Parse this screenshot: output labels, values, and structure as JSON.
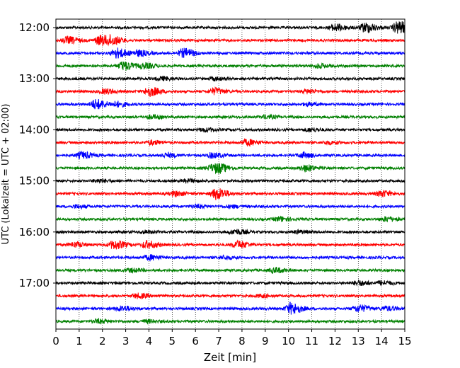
{
  "chart_data": {
    "type": "line",
    "xlabel": "Zeit  [min]",
    "ylabel": "UTC (Lokalzeit = UTC + 02:00)",
    "xlim": [
      0,
      15
    ],
    "x_ticks": [
      0,
      1,
      2,
      3,
      4,
      5,
      6,
      7,
      8,
      9,
      10,
      11,
      12,
      13,
      14,
      15
    ],
    "x_tick_labels": [
      "0",
      "1",
      "2",
      "3",
      "4",
      "5",
      "6",
      "7",
      "8",
      "9",
      "10",
      "11",
      "12",
      "13",
      "14",
      "15"
    ],
    "y_tick_labels": [
      "12:00",
      "13:00",
      "14:00",
      "15:00",
      "16:00",
      "17:00"
    ],
    "trace_interval_min": 15,
    "vertical_grid": "dotted",
    "colors": [
      "#000000",
      "#ff0000",
      "#0000ff",
      "#008000"
    ],
    "traces": [
      {
        "start": "12:00",
        "color": "#000000",
        "events": [
          {
            "t": 12.0,
            "a": 1.4
          },
          {
            "t": 13.3,
            "a": 2.0
          },
          {
            "t": 14.7,
            "a": 2.6
          }
        ]
      },
      {
        "start": "12:15",
        "color": "#ff0000",
        "events": [
          {
            "t": 0.5,
            "a": 1.4
          },
          {
            "t": 1.9,
            "a": 2.0
          },
          {
            "t": 2.4,
            "a": 1.5
          }
        ]
      },
      {
        "start": "12:30",
        "color": "#0000ff",
        "events": [
          {
            "t": 2.6,
            "a": 2.0
          },
          {
            "t": 3.5,
            "a": 1.2
          },
          {
            "t": 5.5,
            "a": 1.8
          }
        ]
      },
      {
        "start": "12:45",
        "color": "#008000",
        "events": [
          {
            "t": 2.9,
            "a": 1.8
          },
          {
            "t": 3.8,
            "a": 1.0
          },
          {
            "t": 11.3,
            "a": 0.8
          }
        ]
      },
      {
        "start": "13:00",
        "color": "#000000",
        "events": [
          {
            "t": 4.5,
            "a": 0.7
          },
          {
            "t": 6.8,
            "a": 0.6
          }
        ]
      },
      {
        "start": "13:15",
        "color": "#ff0000",
        "events": [
          {
            "t": 2.1,
            "a": 1.0
          },
          {
            "t": 4.0,
            "a": 1.9
          },
          {
            "t": 6.8,
            "a": 1.3
          },
          {
            "t": 10.8,
            "a": 0.7
          }
        ]
      },
      {
        "start": "13:30",
        "color": "#0000ff",
        "events": [
          {
            "t": 1.7,
            "a": 2.0
          },
          {
            "t": 2.6,
            "a": 1.0
          },
          {
            "t": 10.8,
            "a": 0.6
          }
        ]
      },
      {
        "start": "13:45",
        "color": "#008000",
        "events": [
          {
            "t": 4.1,
            "a": 0.7
          },
          {
            "t": 9.0,
            "a": 0.6
          }
        ]
      },
      {
        "start": "14:00",
        "color": "#000000",
        "events": [
          {
            "t": 6.4,
            "a": 0.7
          },
          {
            "t": 10.9,
            "a": 0.7
          }
        ]
      },
      {
        "start": "14:15",
        "color": "#ff0000",
        "events": [
          {
            "t": 4.1,
            "a": 0.8
          },
          {
            "t": 8.2,
            "a": 1.2
          },
          {
            "t": 11.7,
            "a": 0.6
          }
        ]
      },
      {
        "start": "14:30",
        "color": "#0000ff",
        "events": [
          {
            "t": 1.1,
            "a": 1.3
          },
          {
            "t": 4.7,
            "a": 0.8
          },
          {
            "t": 6.7,
            "a": 1.0
          },
          {
            "t": 10.6,
            "a": 1.0
          }
        ]
      },
      {
        "start": "14:45",
        "color": "#008000",
        "events": [
          {
            "t": 6.7,
            "a": 1.2
          },
          {
            "t": 7.0,
            "a": 1.3
          },
          {
            "t": 10.7,
            "a": 1.3
          }
        ]
      },
      {
        "start": "15:00",
        "color": "#000000",
        "events": [
          {
            "t": 1.8,
            "a": 0.6
          },
          {
            "t": 5.6,
            "a": 0.6
          }
        ]
      },
      {
        "start": "15:15",
        "color": "#ff0000",
        "events": [
          {
            "t": 5.1,
            "a": 0.9
          },
          {
            "t": 6.9,
            "a": 2.4
          },
          {
            "t": 14.0,
            "a": 1.2
          }
        ]
      },
      {
        "start": "15:30",
        "color": "#0000ff",
        "events": [
          {
            "t": 0.9,
            "a": 0.6
          },
          {
            "t": 6.0,
            "a": 0.6
          },
          {
            "t": 7.5,
            "a": 0.5
          }
        ]
      },
      {
        "start": "15:45",
        "color": "#008000",
        "events": [
          {
            "t": 9.6,
            "a": 0.9
          },
          {
            "t": 14.2,
            "a": 0.9
          }
        ]
      },
      {
        "start": "16:00",
        "color": "#000000",
        "events": [
          {
            "t": 3.8,
            "a": 0.5
          },
          {
            "t": 7.7,
            "a": 1.0
          },
          {
            "t": 10.4,
            "a": 0.6
          }
        ]
      },
      {
        "start": "16:15",
        "color": "#ff0000",
        "events": [
          {
            "t": 0.8,
            "a": 1.0
          },
          {
            "t": 2.5,
            "a": 1.8
          },
          {
            "t": 3.9,
            "a": 1.5
          },
          {
            "t": 7.8,
            "a": 1.5
          }
        ]
      },
      {
        "start": "16:30",
        "color": "#0000ff",
        "events": [
          {
            "t": 4.0,
            "a": 1.0
          },
          {
            "t": 7.2,
            "a": 0.6
          }
        ]
      },
      {
        "start": "16:45",
        "color": "#008000",
        "events": [
          {
            "t": 3.2,
            "a": 0.7
          },
          {
            "t": 9.4,
            "a": 1.0
          }
        ]
      },
      {
        "start": "17:00",
        "color": "#000000",
        "events": [
          {
            "t": 13.0,
            "a": 0.9
          },
          {
            "t": 14.0,
            "a": 0.8
          }
        ]
      },
      {
        "start": "17:15",
        "color": "#ff0000",
        "events": [
          {
            "t": 3.5,
            "a": 0.9
          },
          {
            "t": 8.8,
            "a": 0.5
          }
        ]
      },
      {
        "start": "17:30",
        "color": "#0000ff",
        "events": [
          {
            "t": 2.8,
            "a": 1.0
          },
          {
            "t": 10.1,
            "a": 2.4
          },
          {
            "t": 13.0,
            "a": 1.4
          },
          {
            "t": 14.2,
            "a": 0.8
          }
        ]
      },
      {
        "start": "17:45",
        "color": "#008000",
        "events": [
          {
            "t": 1.8,
            "a": 0.8
          },
          {
            "t": 3.9,
            "a": 0.6
          }
        ]
      }
    ]
  }
}
